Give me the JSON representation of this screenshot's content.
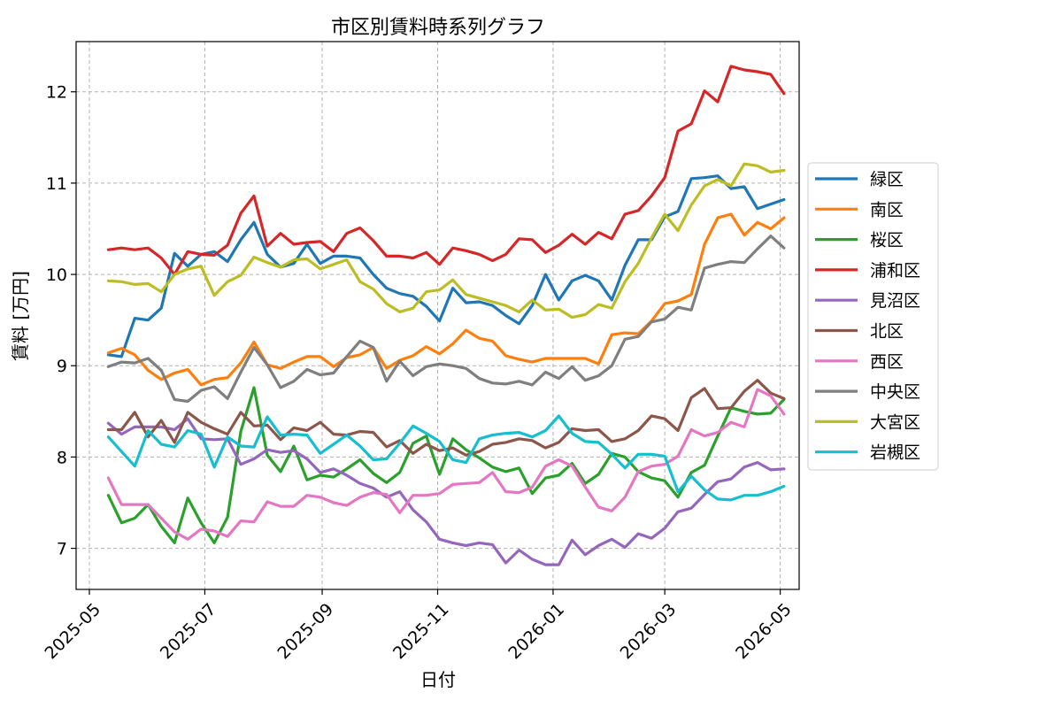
{
  "chart_data": {
    "type": "line",
    "title": "市区別賃料時系列グラフ",
    "xlabel": "日付",
    "ylabel": "賃料 [万円]",
    "x_ticks": [
      "2025-05-01",
      "2025-07-01",
      "2025-09-01",
      "2025-11-01",
      "2026-01-01",
      "2026-03-01",
      "2026-05-01"
    ],
    "x_tick_labels": [
      "2025-05",
      "2025-07",
      "2025-09",
      "2025-11",
      "2026-01",
      "2026-03",
      "2026-05"
    ],
    "xlim": [
      "2025-04-24",
      "2026-05-11"
    ],
    "ylim": [
      6.55,
      12.55
    ],
    "y_ticks": [
      7,
      8,
      9,
      10,
      11,
      12
    ],
    "grid": true,
    "legend_position": "right",
    "x": [
      "2025-05-11",
      "2025-05-18",
      "2025-05-25",
      "2025-06-01",
      "2025-06-08",
      "2025-06-15",
      "2025-06-22",
      "2025-06-29",
      "2025-07-06",
      "2025-07-13",
      "2025-07-20",
      "2025-07-27",
      "2025-08-03",
      "2025-08-10",
      "2025-08-17",
      "2025-08-24",
      "2025-08-31",
      "2025-09-07",
      "2025-09-14",
      "2025-09-21",
      "2025-09-28",
      "2025-10-05",
      "2025-10-12",
      "2025-10-19",
      "2025-10-26",
      "2025-11-02",
      "2025-11-09",
      "2025-11-16",
      "2025-11-23",
      "2025-11-30",
      "2025-12-07",
      "2025-12-14",
      "2025-12-21",
      "2025-12-28",
      "2026-01-04",
      "2026-01-11",
      "2026-01-18",
      "2026-01-25",
      "2026-02-01",
      "2026-02-08",
      "2026-02-15",
      "2026-02-22",
      "2026-03-01",
      "2026-03-08",
      "2026-03-15",
      "2026-03-22",
      "2026-03-29",
      "2026-04-05",
      "2026-04-12",
      "2026-04-19",
      "2026-04-26",
      "2026-05-03"
    ],
    "series": [
      {
        "name": "緑区",
        "color": "#1f77b4",
        "values": [
          9.12,
          9.1,
          9.52,
          9.5,
          9.63,
          10.23,
          10.09,
          10.22,
          10.25,
          10.14,
          10.38,
          10.57,
          10.22,
          10.08,
          10.12,
          10.33,
          10.12,
          10.2,
          10.2,
          10.18,
          10.0,
          9.85,
          9.79,
          9.76,
          9.65,
          9.49,
          9.85,
          9.69,
          9.7,
          9.66,
          9.55,
          9.46,
          9.66,
          10.0,
          9.72,
          9.93,
          9.99,
          9.93,
          9.72,
          10.1,
          10.38,
          10.38,
          10.63,
          10.69,
          11.05,
          11.06,
          11.08,
          10.94,
          10.96,
          10.72,
          10.77,
          10.82
        ]
      },
      {
        "name": "南区",
        "color": "#ff7f0e",
        "values": [
          9.14,
          9.19,
          9.12,
          8.95,
          8.85,
          8.92,
          8.96,
          8.79,
          8.85,
          8.87,
          9.03,
          9.26,
          9.01,
          8.97,
          9.04,
          9.1,
          9.1,
          8.99,
          9.09,
          9.12,
          9.2,
          8.97,
          9.06,
          9.11,
          9.21,
          9.13,
          9.24,
          9.39,
          9.3,
          9.27,
          9.11,
          9.07,
          9.04,
          9.08,
          9.08,
          9.08,
          9.08,
          9.02,
          9.34,
          9.36,
          9.35,
          9.49,
          9.68,
          9.71,
          9.78,
          10.33,
          10.62,
          10.66,
          10.43,
          10.57,
          10.5,
          10.62
        ]
      },
      {
        "name": "桜区",
        "color": "#2ca02c",
        "values": [
          7.58,
          7.28,
          7.33,
          7.48,
          7.24,
          7.06,
          7.55,
          7.28,
          7.06,
          7.34,
          8.28,
          8.76,
          8.02,
          7.84,
          8.12,
          7.75,
          7.8,
          7.78,
          7.87,
          7.97,
          7.82,
          7.72,
          7.83,
          8.15,
          8.23,
          7.81,
          8.2,
          8.08,
          7.99,
          7.89,
          7.84,
          7.88,
          7.6,
          7.77,
          7.8,
          7.93,
          7.71,
          7.81,
          8.04,
          8.0,
          7.84,
          7.77,
          7.74,
          7.56,
          7.83,
          7.91,
          8.23,
          8.54,
          8.5,
          8.47,
          8.48,
          8.63
        ]
      },
      {
        "name": "浦和区",
        "color": "#d62728",
        "values": [
          10.27,
          10.29,
          10.27,
          10.29,
          10.18,
          10.0,
          10.25,
          10.22,
          10.21,
          10.32,
          10.67,
          10.86,
          10.31,
          10.45,
          10.33,
          10.35,
          10.36,
          10.25,
          10.45,
          10.51,
          10.37,
          10.2,
          10.2,
          10.18,
          10.24,
          10.11,
          10.29,
          10.26,
          10.22,
          10.15,
          10.22,
          10.39,
          10.38,
          10.24,
          10.32,
          10.44,
          10.33,
          10.46,
          10.39,
          10.66,
          10.7,
          10.86,
          11.06,
          11.57,
          11.65,
          12.01,
          11.89,
          12.28,
          12.24,
          12.22,
          12.19,
          11.98
        ]
      },
      {
        "name": "見沼区",
        "color": "#9467bd",
        "values": [
          8.37,
          8.25,
          8.33,
          8.33,
          8.33,
          8.3,
          8.42,
          8.2,
          8.19,
          8.2,
          7.92,
          7.98,
          8.08,
          8.05,
          8.07,
          7.98,
          7.83,
          7.87,
          7.8,
          7.71,
          7.66,
          7.56,
          7.62,
          7.42,
          7.29,
          7.1,
          7.06,
          7.03,
          7.06,
          7.04,
          6.84,
          6.98,
          6.88,
          6.82,
          6.82,
          7.09,
          6.93,
          7.03,
          7.1,
          7.01,
          7.16,
          7.11,
          7.22,
          7.4,
          7.44,
          7.59,
          7.73,
          7.76,
          7.89,
          7.94,
          7.86,
          7.87
        ]
      },
      {
        "name": "北区",
        "color": "#8c564b",
        "values": [
          8.3,
          8.3,
          8.49,
          8.22,
          8.4,
          8.16,
          8.49,
          8.38,
          8.31,
          8.25,
          8.49,
          8.34,
          8.35,
          8.19,
          8.32,
          8.29,
          8.38,
          8.25,
          8.24,
          8.28,
          8.27,
          8.11,
          8.18,
          8.04,
          8.14,
          8.07,
          8.1,
          8.02,
          8.06,
          8.14,
          8.16,
          8.2,
          8.18,
          8.1,
          8.16,
          8.31,
          8.29,
          8.3,
          8.17,
          8.2,
          8.29,
          8.45,
          8.42,
          8.29,
          8.65,
          8.75,
          8.53,
          8.54,
          8.72,
          8.84,
          8.7,
          8.64
        ]
      },
      {
        "name": "西区",
        "color": "#e377c2",
        "values": [
          7.77,
          7.48,
          7.48,
          7.48,
          7.33,
          7.18,
          7.1,
          7.21,
          7.19,
          7.13,
          7.3,
          7.29,
          7.51,
          7.46,
          7.46,
          7.58,
          7.56,
          7.5,
          7.47,
          7.56,
          7.61,
          7.59,
          7.39,
          7.58,
          7.58,
          7.6,
          7.7,
          7.71,
          7.72,
          7.83,
          7.62,
          7.61,
          7.67,
          7.9,
          7.97,
          7.9,
          7.67,
          7.45,
          7.41,
          7.56,
          7.84,
          7.9,
          7.92,
          8.01,
          8.3,
          8.23,
          8.27,
          8.38,
          8.33,
          8.74,
          8.67,
          8.47
        ]
      },
      {
        "name": "中央区",
        "color": "#7f7f7f",
        "values": [
          8.99,
          9.04,
          9.03,
          9.08,
          8.95,
          8.63,
          8.61,
          8.73,
          8.77,
          8.64,
          8.93,
          9.2,
          9.01,
          8.76,
          8.83,
          8.96,
          8.9,
          8.92,
          9.1,
          9.27,
          9.2,
          8.83,
          9.05,
          8.89,
          8.99,
          9.02,
          9.0,
          8.97,
          8.86,
          8.81,
          8.8,
          8.83,
          8.79,
          8.93,
          8.86,
          8.99,
          8.84,
          8.89,
          9.0,
          9.29,
          9.32,
          9.48,
          9.51,
          9.64,
          9.61,
          10.07,
          10.11,
          10.14,
          10.13,
          10.28,
          10.42,
          10.29
        ]
      },
      {
        "name": "大宮区",
        "color": "#bcbd22",
        "values": [
          9.93,
          9.92,
          9.89,
          9.9,
          9.81,
          10.0,
          10.06,
          10.09,
          9.77,
          9.92,
          9.99,
          10.19,
          10.13,
          10.08,
          10.16,
          10.17,
          10.06,
          10.11,
          10.16,
          9.92,
          9.84,
          9.68,
          9.59,
          9.63,
          9.81,
          9.83,
          9.94,
          9.78,
          9.74,
          9.7,
          9.66,
          9.59,
          9.72,
          9.61,
          9.62,
          9.53,
          9.56,
          9.67,
          9.63,
          9.92,
          10.12,
          10.4,
          10.66,
          10.48,
          10.76,
          10.97,
          11.04,
          10.97,
          11.21,
          11.19,
          11.12,
          11.14
        ]
      },
      {
        "name": "岩槻区",
        "color": "#17becf",
        "values": [
          8.22,
          8.06,
          7.9,
          8.29,
          8.14,
          8.11,
          8.29,
          8.25,
          7.89,
          8.22,
          8.12,
          8.11,
          8.44,
          8.24,
          8.25,
          8.24,
          8.04,
          8.14,
          8.24,
          8.12,
          7.97,
          7.98,
          8.15,
          8.34,
          8.26,
          8.17,
          7.97,
          7.94,
          8.2,
          8.24,
          8.26,
          8.27,
          8.22,
          8.29,
          8.45,
          8.26,
          8.17,
          8.16,
          8.03,
          7.88,
          8.03,
          8.03,
          8.01,
          7.62,
          7.79,
          7.64,
          7.54,
          7.53,
          7.58,
          7.58,
          7.62,
          7.68
        ]
      }
    ]
  }
}
